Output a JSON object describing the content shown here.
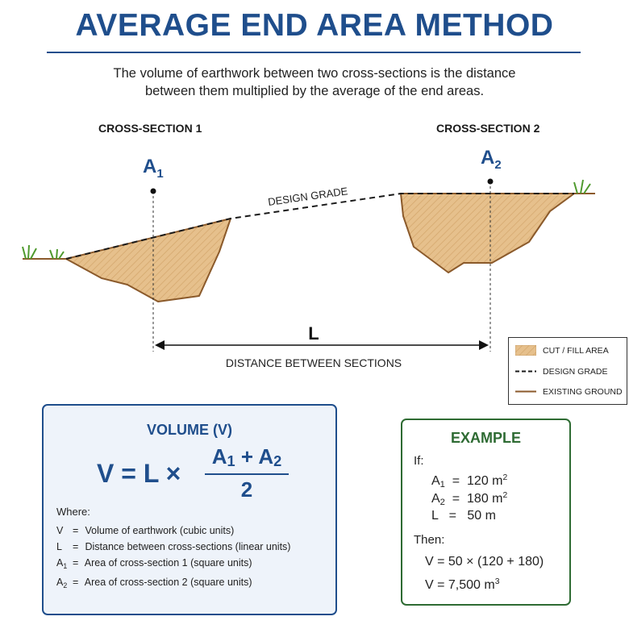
{
  "title": "AVERAGE END AREA METHOD",
  "intro": {
    "line1": "The volume of earthwork between two cross-sections is the distance",
    "line2": "between them multiplied by the average of the end areas."
  },
  "diagram": {
    "section1_label": "CROSS-SECTION 1",
    "section2_label": "CROSS-SECTION 2",
    "a1_symbol": "A",
    "a1_sub": "1",
    "a2_symbol": "A",
    "a2_sub": "2",
    "design_grade_label": "DESIGN GRADE",
    "distance_symbol": "L",
    "distance_label": "DISTANCE BETWEEN SECTIONS"
  },
  "legend": {
    "items": [
      {
        "label": "CUT / FILL AREA",
        "icon": "hatched-swatch"
      },
      {
        "label": "DESIGN GRADE",
        "icon": "dashed-line"
      },
      {
        "label": "EXISTING GROUND",
        "icon": "solid-brown-line"
      }
    ]
  },
  "formula": {
    "title": "VOLUME (V)",
    "lhs": "V = L ×",
    "numerator_a1": "A",
    "numerator_a1_sub": "1",
    "numerator_plus": "+ A",
    "numerator_a2_sub": "2",
    "denominator": "2",
    "where_label": "Where:",
    "definitions": [
      {
        "symbol": "V",
        "sub": "",
        "text": "Volume of earthwork (cubic units)"
      },
      {
        "symbol": "L",
        "sub": "",
        "text": "Distance between cross-sections (linear units)"
      },
      {
        "symbol": "A",
        "sub": "1",
        "text": "Area of cross-section 1 (square units)"
      },
      {
        "symbol": "A",
        "sub": "2",
        "text": "Area of cross-section 2 (square units)"
      }
    ]
  },
  "example": {
    "title": "EXAMPLE",
    "if_label": "If:",
    "a1_value": "120 m",
    "a1_exp": "2",
    "a2_value": "180 m",
    "a2_exp": "2",
    "l_value": "50 m",
    "then_label": "Then:",
    "calc_line": "V = 50 × (120 + 180)",
    "result_line": "V = 7,500 m",
    "result_exp": "3"
  },
  "colors": {
    "title_blue": "#1f4e8c",
    "fill_tan": "#e6c08c",
    "ground_brown": "#8b5a2b",
    "example_green": "#2e6b33",
    "grass_green": "#4f9a2e"
  }
}
